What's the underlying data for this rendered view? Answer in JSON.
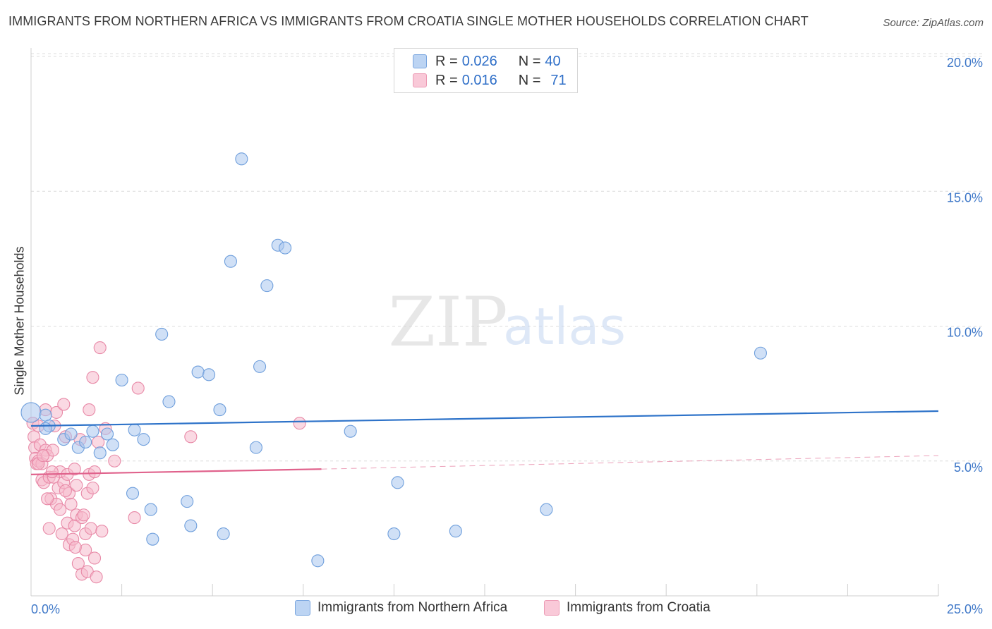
{
  "title": "IMMIGRANTS FROM NORTHERN AFRICA VS IMMIGRANTS FROM CROATIA SINGLE MOTHER HOUSEHOLDS CORRELATION CHART",
  "source": "Source: ZipAtlas.com",
  "watermark": {
    "zip": "ZIP",
    "atlas": "atlas"
  },
  "colors": {
    "blue_fill": "#a9c7ef",
    "blue_stroke": "#6f9fdc",
    "blue_line": "#2e73c9",
    "pink_fill": "#f6b9cc",
    "pink_stroke": "#e889a7",
    "pink_line": "#e0628c",
    "axis_text": "#3f78c8",
    "grid": "#dcdcdc"
  },
  "legend": {
    "rows": [
      {
        "r_label": "R =",
        "r_value": "0.026",
        "n_label": "N =",
        "n_value": "40"
      },
      {
        "r_label": "R =",
        "r_value": "0.016",
        "n_label": "N =",
        "n_value": "71"
      }
    ]
  },
  "chart_data": {
    "type": "scatter",
    "title": "IMMIGRANTS FROM NORTHERN AFRICA VS IMMIGRANTS FROM CROATIA SINGLE MOTHER HOUSEHOLDS CORRELATION CHART",
    "xlabel": "",
    "ylabel": "Single Mother Households",
    "xlim": [
      0,
      25
    ],
    "ylim": [
      0,
      20
    ],
    "x_tick_labels": [
      "0.0%",
      "25.0%"
    ],
    "y_ticks": [
      5,
      10,
      15,
      20
    ],
    "y_tick_labels": [
      "5.0%",
      "10.0%",
      "15.0%",
      "20.0%"
    ],
    "grid": true,
    "series": [
      {
        "name": "Immigrants from Northern Africa",
        "color": "#a9c7ef",
        "points": [
          [
            0.0,
            6.8
          ],
          [
            0.4,
            6.7
          ],
          [
            0.5,
            6.3
          ],
          [
            0.4,
            6.2
          ],
          [
            0.9,
            5.8
          ],
          [
            1.1,
            6.0
          ],
          [
            1.3,
            5.5
          ],
          [
            1.5,
            5.7
          ],
          [
            1.7,
            6.1
          ],
          [
            1.9,
            5.3
          ],
          [
            2.1,
            6.0
          ],
          [
            2.25,
            5.6
          ],
          [
            2.5,
            8.0
          ],
          [
            2.8,
            3.8
          ],
          [
            2.85,
            6.15
          ],
          [
            3.1,
            5.8
          ],
          [
            3.3,
            3.2
          ],
          [
            3.35,
            2.1
          ],
          [
            3.6,
            9.7
          ],
          [
            3.8,
            7.2
          ],
          [
            4.3,
            3.5
          ],
          [
            4.4,
            2.6
          ],
          [
            4.6,
            8.3
          ],
          [
            4.9,
            8.2
          ],
          [
            5.2,
            6.9
          ],
          [
            5.3,
            2.3
          ],
          [
            5.5,
            12.4
          ],
          [
            5.8,
            16.2
          ],
          [
            6.2,
            5.5
          ],
          [
            6.3,
            8.5
          ],
          [
            6.5,
            11.5
          ],
          [
            6.8,
            13.0
          ],
          [
            7.0,
            12.9
          ],
          [
            7.9,
            1.3
          ],
          [
            8.8,
            6.1
          ],
          [
            10.0,
            2.3
          ],
          [
            10.1,
            4.2
          ],
          [
            11.7,
            2.4
          ],
          [
            14.2,
            3.2
          ],
          [
            20.1,
            9.0
          ]
        ],
        "trend": {
          "x": [
            0,
            25
          ],
          "y": [
            6.3,
            6.85
          ]
        }
      },
      {
        "name": "Immigrants from Croatia",
        "color": "#f6b9cc",
        "points": [
          [
            0.05,
            6.4
          ],
          [
            0.08,
            5.9
          ],
          [
            0.1,
            5.5
          ],
          [
            0.12,
            5.1
          ],
          [
            0.15,
            4.9
          ],
          [
            0.2,
            5.0
          ],
          [
            0.2,
            6.3
          ],
          [
            0.25,
            5.6
          ],
          [
            0.3,
            4.9
          ],
          [
            0.3,
            4.3
          ],
          [
            0.35,
            4.2
          ],
          [
            0.4,
            6.9
          ],
          [
            0.4,
            5.4
          ],
          [
            0.45,
            5.2
          ],
          [
            0.5,
            4.4
          ],
          [
            0.5,
            2.5
          ],
          [
            0.55,
            3.6
          ],
          [
            0.6,
            5.4
          ],
          [
            0.65,
            6.3
          ],
          [
            0.7,
            6.8
          ],
          [
            0.7,
            3.4
          ],
          [
            0.75,
            4.0
          ],
          [
            0.8,
            4.6
          ],
          [
            0.8,
            3.2
          ],
          [
            0.85,
            2.3
          ],
          [
            0.9,
            4.2
          ],
          [
            0.95,
            5.9
          ],
          [
            0.9,
            7.1
          ],
          [
            1.0,
            4.5
          ],
          [
            1.0,
            2.7
          ],
          [
            1.05,
            3.8
          ],
          [
            1.05,
            1.9
          ],
          [
            1.1,
            3.4
          ],
          [
            1.15,
            2.1
          ],
          [
            1.2,
            4.7
          ],
          [
            1.2,
            2.6
          ],
          [
            1.25,
            3.0
          ],
          [
            1.25,
            4.1
          ],
          [
            1.3,
            1.2
          ],
          [
            1.35,
            5.8
          ],
          [
            1.4,
            2.9
          ],
          [
            1.4,
            0.8
          ],
          [
            1.45,
            3.0
          ],
          [
            1.5,
            2.3
          ],
          [
            1.5,
            1.7
          ],
          [
            1.55,
            3.8
          ],
          [
            1.55,
            0.9
          ],
          [
            1.6,
            6.9
          ],
          [
            1.6,
            4.5
          ],
          [
            1.65,
            2.5
          ],
          [
            1.7,
            8.1
          ],
          [
            1.7,
            4.0
          ],
          [
            1.75,
            4.6
          ],
          [
            1.75,
            1.4
          ],
          [
            1.8,
            0.7
          ],
          [
            1.85,
            5.7
          ],
          [
            1.9,
            9.2
          ],
          [
            1.95,
            2.4
          ],
          [
            2.05,
            6.2
          ],
          [
            2.3,
            5.0
          ],
          [
            2.85,
            2.9
          ],
          [
            2.95,
            7.7
          ],
          [
            4.4,
            5.9
          ],
          [
            7.4,
            6.4
          ],
          [
            0.2,
            4.9
          ],
          [
            0.45,
            3.6
          ],
          [
            0.62,
            4.4
          ],
          [
            0.95,
            3.9
          ],
          [
            1.22,
            1.8
          ],
          [
            0.33,
            5.2
          ],
          [
            0.58,
            4.6
          ]
        ],
        "trend_solid": {
          "x": [
            0,
            8
          ],
          "y": [
            4.5,
            4.7
          ]
        },
        "trend_dashed": {
          "x": [
            8,
            25
          ],
          "y": [
            4.7,
            5.2
          ]
        }
      }
    ]
  }
}
